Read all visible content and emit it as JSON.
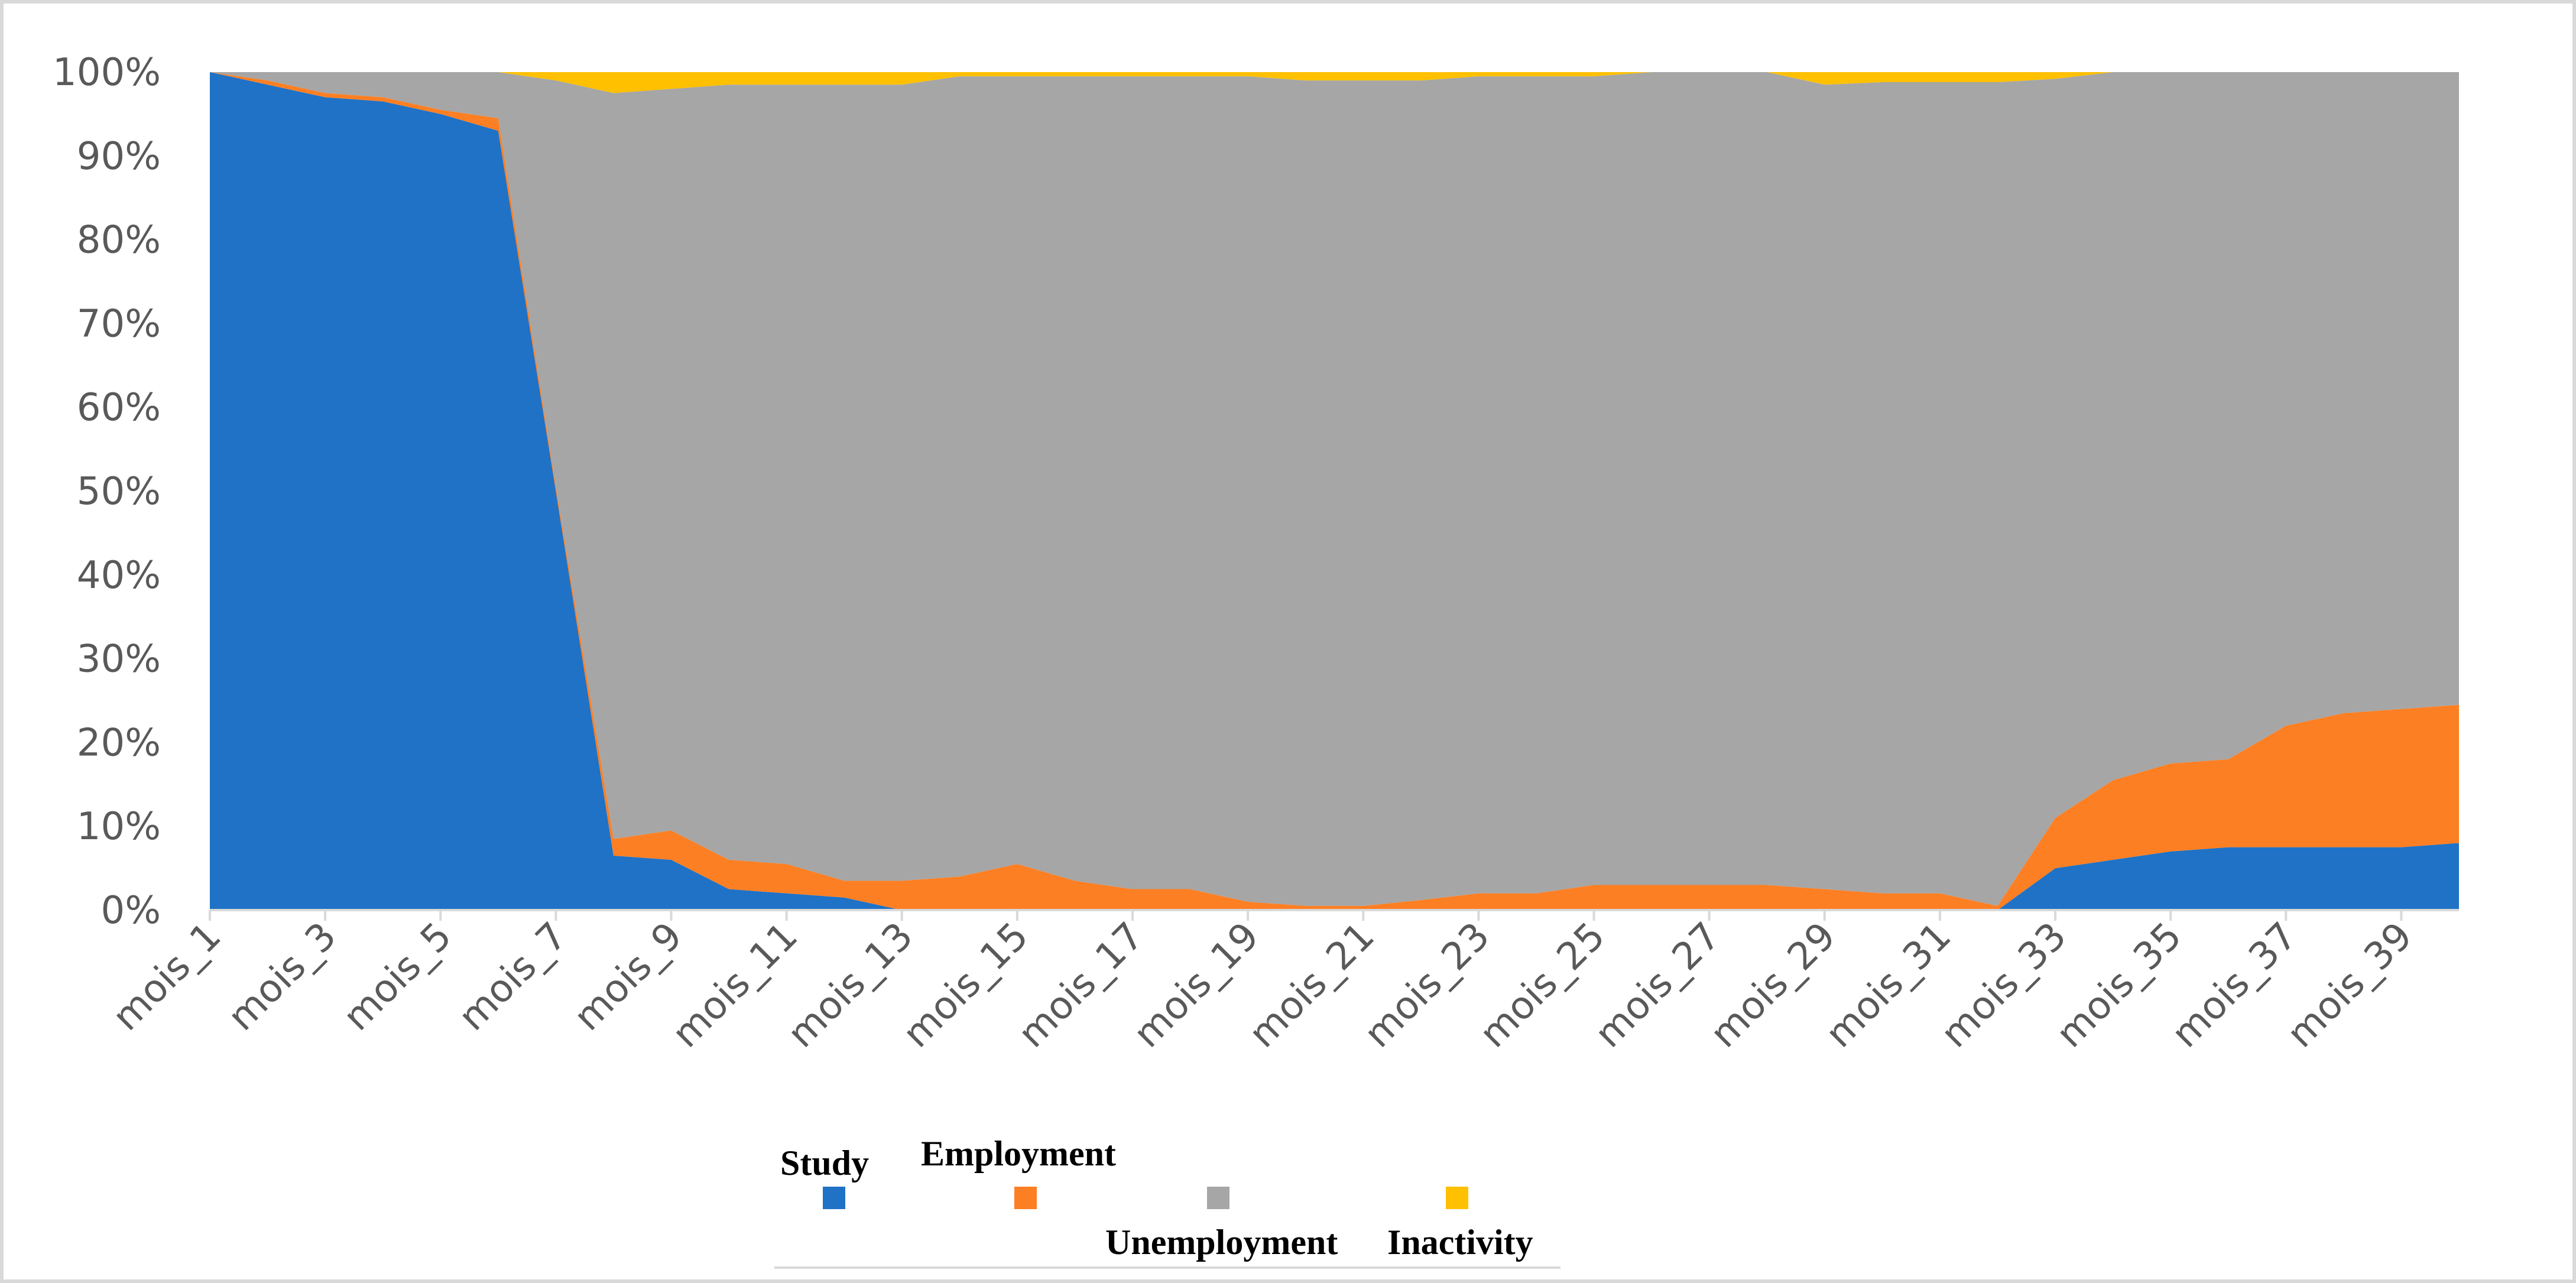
{
  "chart_data": {
    "type": "area",
    "stacked": "percent",
    "title": "",
    "xlabel": "",
    "ylabel": "",
    "ylim": [
      0,
      100
    ],
    "y_ticks": [
      "0%",
      "10%",
      "20%",
      "30%",
      "40%",
      "50%",
      "60%",
      "70%",
      "80%",
      "90%",
      "100%"
    ],
    "x": [
      "mois_1",
      "mois_2",
      "mois_3",
      "mois_4",
      "mois_5",
      "mois_6",
      "mois_7",
      "mois_8",
      "mois_9",
      "mois_10",
      "mois_11",
      "mois_12",
      "mois_13",
      "mois_14",
      "mois_15",
      "mois_16",
      "mois_17",
      "mois_18",
      "mois_19",
      "mois_20",
      "mois_21",
      "mois_22",
      "mois_23",
      "mois_24",
      "mois_25",
      "mois_26",
      "mois_27",
      "mois_28",
      "mois_29",
      "mois_30",
      "mois_31",
      "mois_32",
      "mois_33",
      "mois_34",
      "mois_35",
      "mois_36",
      "mois_37",
      "mois_38",
      "mois_39",
      "mois_40"
    ],
    "x_tick_labels": [
      "mois_1",
      "mois_3",
      "mois_5",
      "mois_7",
      "mois_9",
      "mois_11",
      "mois_13",
      "mois_15",
      "mois_17",
      "mois_19",
      "mois_21",
      "mois_23",
      "mois_25",
      "mois_27",
      "mois_29",
      "mois_31",
      "mois_33",
      "mois_35",
      "mois_37",
      "mois_39"
    ],
    "series": [
      {
        "name": "Study",
        "color": "#1f72c6",
        "values": [
          100,
          98.5,
          97,
          96.5,
          95,
          93,
          50,
          6.5,
          6,
          2.5,
          2,
          1.5,
          0,
          0,
          0,
          0,
          0,
          0,
          0,
          0,
          0,
          0,
          0,
          0,
          0,
          0,
          0,
          0,
          0,
          0,
          0,
          0,
          5,
          6,
          7,
          7.5,
          7.5,
          7.5,
          7.5,
          8
        ]
      },
      {
        "name": "Employment",
        "color": "#fd7f23",
        "values": [
          0,
          0.5,
          0.5,
          0.5,
          0.5,
          1.5,
          0.5,
          2,
          3.5,
          3.5,
          3.5,
          2,
          3.5,
          4,
          5.5,
          3.5,
          2.5,
          2.5,
          1,
          0.5,
          0.5,
          1.2,
          2,
          2,
          3,
          3,
          3,
          3,
          2.5,
          2,
          2,
          0.5,
          6,
          9.5,
          10.5,
          10.5,
          14.5,
          16,
          16.5,
          16.5
        ]
      },
      {
        "name": "Unemployment",
        "color": "#a6a6a6",
        "values": [
          0,
          1,
          2.5,
          3,
          4.5,
          5.5,
          48.5,
          89,
          88.5,
          92.5,
          93,
          95,
          95,
          95.5,
          94,
          96,
          97,
          97,
          98.5,
          98.5,
          98.5,
          97.8,
          97.5,
          97.5,
          96.5,
          97,
          97,
          97,
          96,
          96.8,
          96.8,
          98.3,
          88.2,
          84.5,
          82.5,
          82,
          78,
          76.5,
          76,
          75.5
        ]
      },
      {
        "name": "Inactivity",
        "color": "#ffc000",
        "values": [
          0,
          0,
          0,
          0,
          0,
          0,
          1,
          2.5,
          2,
          1.5,
          1.5,
          1.5,
          1.5,
          0.5,
          0.5,
          0.5,
          0.5,
          0.5,
          0.5,
          1,
          1,
          1,
          0.5,
          0.5,
          0.5,
          0,
          0,
          0,
          1.5,
          1.2,
          1.2,
          1.2,
          0.8,
          0,
          0,
          0,
          0,
          0,
          0,
          0
        ]
      }
    ],
    "legend": {
      "placement": "bottom",
      "labels": {
        "study": "Study",
        "employment": "Employment",
        "unemployment": "Unemployment",
        "inactivity": "Inactivity"
      }
    },
    "grid": false
  }
}
